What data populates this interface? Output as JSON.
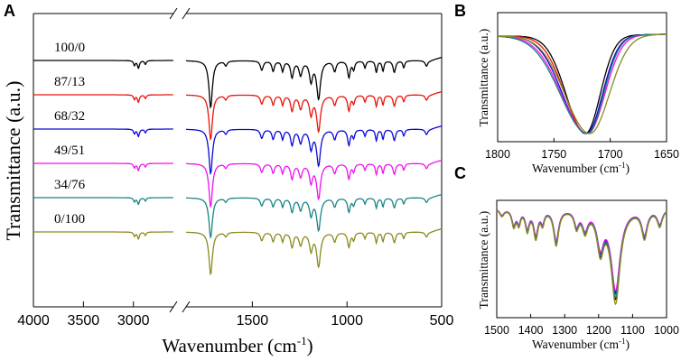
{
  "chart_data": [
    {
      "id": "A",
      "panel_label": "A",
      "type": "line",
      "title": "",
      "xlabel": "Wavenumber (cm",
      "xlabel_sup": "-1",
      "xlabel_close": ")",
      "ylabel": "Transmittance (a.u.)",
      "x_axis": {
        "reversed": true,
        "broken": true,
        "segments": [
          [
            4000,
            2600
          ],
          [
            1850,
            500
          ]
        ],
        "ticks": [
          {
            "value": 4000,
            "label": "4000"
          },
          {
            "value": 3500,
            "label": "3500"
          },
          {
            "value": 3000,
            "label": "3000"
          },
          {
            "value": 1500,
            "label": "1500"
          },
          {
            "value": 1000,
            "label": "1000"
          },
          {
            "value": 500,
            "label": "500"
          }
        ]
      },
      "y_units": "arbitrary",
      "series": [
        {
          "name": "100/0",
          "color": "#000000",
          "offset": 0,
          "peak_scale": 1.0
        },
        {
          "name": "87/13",
          "color": "#e8140c",
          "offset": 1,
          "peak_scale": 0.95
        },
        {
          "name": "68/32",
          "color": "#0a0ad8",
          "offset": 2,
          "peak_scale": 0.95
        },
        {
          "name": "49/51",
          "color": "#f012f0",
          "offset": 3,
          "peak_scale": 0.92
        },
        {
          "name": "34/76",
          "color": "#1a8585",
          "offset": 4,
          "peak_scale": 0.85
        },
        {
          "name": "0/100",
          "color": "#8a8a1e",
          "offset": 5,
          "peak_scale": 0.9
        }
      ],
      "bands": [
        {
          "x": 2990,
          "w": 10,
          "d": 0.1
        },
        {
          "x": 2950,
          "w": 12,
          "d": 0.16
        },
        {
          "x": 2880,
          "w": 10,
          "d": 0.08
        },
        {
          "x": 1720,
          "w": 11,
          "d": 1.0
        },
        {
          "x": 1640,
          "w": 8,
          "d": 0.1
        },
        {
          "x": 1450,
          "w": 9,
          "d": 0.2
        },
        {
          "x": 1390,
          "w": 8,
          "d": 0.22
        },
        {
          "x": 1340,
          "w": 7,
          "d": 0.22
        },
        {
          "x": 1290,
          "w": 9,
          "d": 0.35
        },
        {
          "x": 1245,
          "w": 10,
          "d": 0.3
        },
        {
          "x": 1190,
          "w": 10,
          "d": 0.42
        },
        {
          "x": 1150,
          "w": 12,
          "d": 0.8
        },
        {
          "x": 1065,
          "w": 9,
          "d": 0.22
        },
        {
          "x": 990,
          "w": 8,
          "d": 0.35
        },
        {
          "x": 965,
          "w": 7,
          "d": 0.18
        },
        {
          "x": 905,
          "w": 6,
          "d": 0.15
        },
        {
          "x": 845,
          "w": 6,
          "d": 0.25
        },
        {
          "x": 810,
          "w": 6,
          "d": 0.22
        },
        {
          "x": 750,
          "w": 8,
          "d": 0.25
        },
        {
          "x": 700,
          "w": 6,
          "d": 0.15
        },
        {
          "x": 580,
          "w": 8,
          "d": 0.12
        }
      ]
    },
    {
      "id": "B",
      "panel_label": "B",
      "type": "line",
      "title": "",
      "xlabel": "Wavenumber (cm",
      "xlabel_sup": "-1",
      "xlabel_close": ")",
      "ylabel": "Transmittance (a.u.)",
      "x_range": [
        1800,
        1650
      ],
      "x_ticks": [
        {
          "value": 1800,
          "label": "1800"
        },
        {
          "value": 1750,
          "label": "1750"
        },
        {
          "value": 1700,
          "label": "1700"
        },
        {
          "value": 1650,
          "label": "1650"
        }
      ],
      "series": [
        {
          "name": "100/0",
          "color": "#000000",
          "center": 1722,
          "left_width": 17,
          "right_width": 13
        },
        {
          "name": "87/13",
          "color": "#e8140c",
          "center": 1721,
          "left_width": 19,
          "right_width": 14
        },
        {
          "name": "68/32",
          "color": "#0a0ad8",
          "center": 1721,
          "left_width": 21,
          "right_width": 14
        },
        {
          "name": "49/51",
          "color": "#f012f0",
          "center": 1720,
          "left_width": 23,
          "right_width": 15
        },
        {
          "name": "34/76",
          "color": "#1a8585",
          "center": 1720,
          "left_width": 24,
          "right_width": 14
        },
        {
          "name": "0/100",
          "color": "#8a8a1e",
          "center": 1718,
          "left_width": 22,
          "right_width": 17
        }
      ]
    },
    {
      "id": "C",
      "panel_label": "C",
      "type": "line",
      "title": "",
      "xlabel": "Wavenumber (cm",
      "xlabel_sup": "-1",
      "xlabel_close": ")",
      "ylabel": "Transmittance (a.u.)",
      "x_range": [
        1500,
        1000
      ],
      "x_ticks": [
        {
          "value": 1500,
          "label": "1500"
        },
        {
          "value": 1400,
          "label": "1400"
        },
        {
          "value": 1300,
          "label": "1300"
        },
        {
          "value": 1200,
          "label": "1200"
        },
        {
          "value": 1100,
          "label": "1100"
        },
        {
          "value": 1000,
          "label": "1000"
        }
      ],
      "series": [
        {
          "name": "100/0",
          "color": "#000000",
          "scale": 0.95
        },
        {
          "name": "87/13",
          "color": "#e8140c",
          "scale": 0.9
        },
        {
          "name": "68/32",
          "color": "#0a0ad8",
          "scale": 0.88
        },
        {
          "name": "49/51",
          "color": "#f012f0",
          "scale": 0.86
        },
        {
          "name": "34/76",
          "color": "#1a8585",
          "scale": 0.93
        },
        {
          "name": "0/100",
          "color": "#8a8a1e",
          "scale": 1.0
        }
      ],
      "bands": [
        {
          "x": 1485,
          "w": 8,
          "d": 0.08
        },
        {
          "x": 1450,
          "w": 7,
          "d": 0.18
        },
        {
          "x": 1435,
          "w": 6,
          "d": 0.15
        },
        {
          "x": 1410,
          "w": 7,
          "d": 0.22
        },
        {
          "x": 1385,
          "w": 8,
          "d": 0.3
        },
        {
          "x": 1365,
          "w": 6,
          "d": 0.14
        },
        {
          "x": 1325,
          "w": 9,
          "d": 0.38
        },
        {
          "x": 1265,
          "w": 8,
          "d": 0.18
        },
        {
          "x": 1240,
          "w": 10,
          "d": 0.22
        },
        {
          "x": 1195,
          "w": 12,
          "d": 0.42
        },
        {
          "x": 1150,
          "w": 16,
          "d": 0.98
        },
        {
          "x": 1065,
          "w": 10,
          "d": 0.3
        },
        {
          "x": 1020,
          "w": 9,
          "d": 0.18
        }
      ]
    }
  ]
}
